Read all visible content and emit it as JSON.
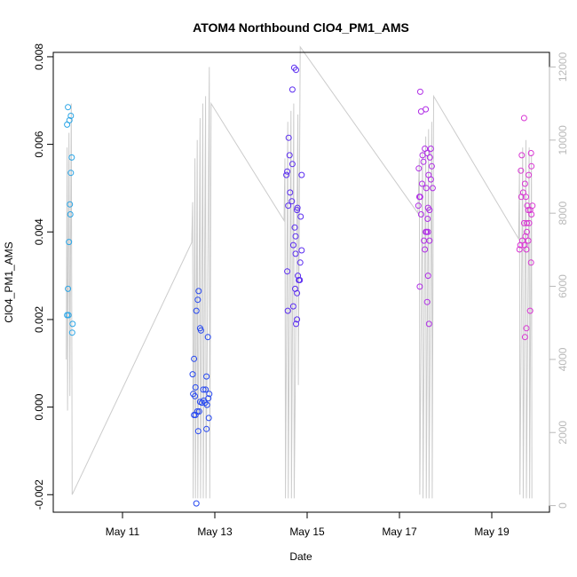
{
  "chart_data": {
    "type": "scatter",
    "title": "ATOM4 Northbound ClO4_PM1_AMS",
    "xlabel": "Date",
    "ylabel": "ClO4_PM1_AMS",
    "x_ticks": [
      {
        "day": 11,
        "label": "May 11"
      },
      {
        "day": 13,
        "label": "May 13"
      },
      {
        "day": 15,
        "label": "May 15"
      },
      {
        "day": 17,
        "label": "May 17"
      },
      {
        "day": 19,
        "label": "May 19"
      }
    ],
    "xlim": [
      "2016-05-09 12:00",
      "2016-05-20 06:00"
    ],
    "ylim": [
      -0.0024,
      0.0081
    ],
    "y_ticks": [
      "-0.002",
      "0.000",
      "0.002",
      "0.004",
      "0.006",
      "0.008"
    ],
    "y2lim": [
      -180,
      12400
    ],
    "y2_ticks": [
      "0",
      "2000",
      "4000",
      "6000",
      "8000",
      "10000",
      "12000"
    ],
    "grid": false,
    "colors": {
      "cluster_day10": "#2aa5e6",
      "cluster_day12": "#2547f0",
      "cluster_day14": "#5b2df0",
      "cluster_day17": "#b02ee6",
      "cluster_day19": "#d936d3",
      "secondary_line": "#cccccc",
      "axis": "#000000",
      "secondary_axis": "#b9b9b9"
    },
    "series": [
      {
        "color_key": "cluster_day10",
        "points": [
          {
            "x": 9.82,
            "y": 0.00685
          },
          {
            "x": 9.8,
            "y": 0.00645
          },
          {
            "x": 9.85,
            "y": 0.00655
          },
          {
            "x": 9.88,
            "y": 0.00665
          },
          {
            "x": 9.9,
            "y": 0.0057
          },
          {
            "x": 9.88,
            "y": 0.00535
          },
          {
            "x": 9.86,
            "y": 0.00463
          },
          {
            "x": 9.87,
            "y": 0.0044
          },
          {
            "x": 9.84,
            "y": 0.00377
          },
          {
            "x": 9.82,
            "y": 0.0027
          },
          {
            "x": 9.8,
            "y": 0.0021
          },
          {
            "x": 9.83,
            "y": 0.0021
          },
          {
            "x": 9.92,
            "y": 0.0019
          },
          {
            "x": 9.91,
            "y": 0.0017
          }
        ]
      },
      {
        "color_key": "cluster_day12",
        "points": [
          {
            "x": 12.65,
            "y": 0.00265
          },
          {
            "x": 12.63,
            "y": 0.00245
          },
          {
            "x": 12.6,
            "y": 0.0022
          },
          {
            "x": 12.68,
            "y": 0.0018
          },
          {
            "x": 12.7,
            "y": 0.00175
          },
          {
            "x": 12.85,
            "y": 0.0016
          },
          {
            "x": 12.55,
            "y": 0.0011
          },
          {
            "x": 12.52,
            "y": 0.00075
          },
          {
            "x": 12.82,
            "y": 0.0007
          },
          {
            "x": 12.58,
            "y": 0.00045
          },
          {
            "x": 12.75,
            "y": 0.0004
          },
          {
            "x": 12.8,
            "y": 0.0004
          },
          {
            "x": 12.53,
            "y": 0.0003
          },
          {
            "x": 12.57,
            "y": 0.00025
          },
          {
            "x": 12.88,
            "y": 0.0003
          },
          {
            "x": 12.86,
            "y": 0.0002
          },
          {
            "x": 12.68,
            "y": 0.00012
          },
          {
            "x": 12.72,
            "y": 0.0001
          },
          {
            "x": 12.76,
            "y": 0.00015
          },
          {
            "x": 12.79,
            "y": 0.0001
          },
          {
            "x": 12.83,
            "y": 5e-05
          },
          {
            "x": 12.62,
            "y": -0.0001
          },
          {
            "x": 12.66,
            "y": -0.0001
          },
          {
            "x": 12.55,
            "y": -0.00018
          },
          {
            "x": 12.58,
            "y": -0.00018
          },
          {
            "x": 12.87,
            "y": -0.00025
          },
          {
            "x": 12.64,
            "y": -0.00055
          },
          {
            "x": 12.82,
            "y": -0.0005
          },
          {
            "x": 12.6,
            "y": -0.0022
          }
        ]
      },
      {
        "color_key": "cluster_day14",
        "points": [
          {
            "x": 14.72,
            "y": 0.00775
          },
          {
            "x": 14.76,
            "y": 0.0077
          },
          {
            "x": 14.68,
            "y": 0.00725
          },
          {
            "x": 14.6,
            "y": 0.00615
          },
          {
            "x": 14.62,
            "y": 0.00575
          },
          {
            "x": 14.68,
            "y": 0.00555
          },
          {
            "x": 14.57,
            "y": 0.00538
          },
          {
            "x": 14.55,
            "y": 0.0053
          },
          {
            "x": 14.88,
            "y": 0.0053
          },
          {
            "x": 14.63,
            "y": 0.0049
          },
          {
            "x": 14.67,
            "y": 0.0047
          },
          {
            "x": 14.59,
            "y": 0.0046
          },
          {
            "x": 14.79,
            "y": 0.00455
          },
          {
            "x": 14.78,
            "y": 0.0045
          },
          {
            "x": 14.86,
            "y": 0.00435
          },
          {
            "x": 14.73,
            "y": 0.0041
          },
          {
            "x": 14.75,
            "y": 0.0039
          },
          {
            "x": 14.7,
            "y": 0.0037
          },
          {
            "x": 14.88,
            "y": 0.00358
          },
          {
            "x": 14.75,
            "y": 0.0035
          },
          {
            "x": 14.85,
            "y": 0.0033
          },
          {
            "x": 14.57,
            "y": 0.0031
          },
          {
            "x": 14.8,
            "y": 0.003
          },
          {
            "x": 14.84,
            "y": 0.0029
          },
          {
            "x": 14.82,
            "y": 0.0029
          },
          {
            "x": 14.74,
            "y": 0.0027
          },
          {
            "x": 14.78,
            "y": 0.0026
          },
          {
            "x": 14.7,
            "y": 0.0023
          },
          {
            "x": 14.58,
            "y": 0.0022
          },
          {
            "x": 14.78,
            "y": 0.002
          },
          {
            "x": 14.76,
            "y": 0.0019
          }
        ]
      },
      {
        "color_key": "cluster_day17",
        "points": [
          {
            "x": 17.45,
            "y": 0.0072
          },
          {
            "x": 17.47,
            "y": 0.00675
          },
          {
            "x": 17.57,
            "y": 0.0068
          },
          {
            "x": 17.68,
            "y": 0.0059
          },
          {
            "x": 17.55,
            "y": 0.0059
          },
          {
            "x": 17.5,
            "y": 0.00575
          },
          {
            "x": 17.6,
            "y": 0.0058
          },
          {
            "x": 17.66,
            "y": 0.0057
          },
          {
            "x": 17.52,
            "y": 0.0056
          },
          {
            "x": 17.7,
            "y": 0.0055
          },
          {
            "x": 17.42,
            "y": 0.00545
          },
          {
            "x": 17.63,
            "y": 0.0053
          },
          {
            "x": 17.68,
            "y": 0.0052
          },
          {
            "x": 17.49,
            "y": 0.0051
          },
          {
            "x": 17.58,
            "y": 0.005
          },
          {
            "x": 17.72,
            "y": 0.005
          },
          {
            "x": 17.45,
            "y": 0.0048
          },
          {
            "x": 17.43,
            "y": 0.0048
          },
          {
            "x": 17.41,
            "y": 0.0046
          },
          {
            "x": 17.62,
            "y": 0.00455
          },
          {
            "x": 17.65,
            "y": 0.0045
          },
          {
            "x": 17.47,
            "y": 0.0044
          },
          {
            "x": 17.61,
            "y": 0.0043
          },
          {
            "x": 17.59,
            "y": 0.004
          },
          {
            "x": 17.57,
            "y": 0.004
          },
          {
            "x": 17.62,
            "y": 0.004
          },
          {
            "x": 17.53,
            "y": 0.0038
          },
          {
            "x": 17.65,
            "y": 0.0038
          },
          {
            "x": 17.55,
            "y": 0.0036
          },
          {
            "x": 17.62,
            "y": 0.003
          },
          {
            "x": 17.44,
            "y": 0.00275
          },
          {
            "x": 17.6,
            "y": 0.0024
          },
          {
            "x": 17.64,
            "y": 0.0019
          }
        ]
      },
      {
        "color_key": "cluster_day19",
        "points": [
          {
            "x": 19.7,
            "y": 0.0066
          },
          {
            "x": 19.85,
            "y": 0.0058
          },
          {
            "x": 19.65,
            "y": 0.00575
          },
          {
            "x": 19.86,
            "y": 0.0055
          },
          {
            "x": 19.63,
            "y": 0.0054
          },
          {
            "x": 19.8,
            "y": 0.0053
          },
          {
            "x": 19.72,
            "y": 0.0051
          },
          {
            "x": 19.68,
            "y": 0.0049
          },
          {
            "x": 19.64,
            "y": 0.0048
          },
          {
            "x": 19.74,
            "y": 0.0048
          },
          {
            "x": 19.77,
            "y": 0.0046
          },
          {
            "x": 19.88,
            "y": 0.0046
          },
          {
            "x": 19.83,
            "y": 0.0045
          },
          {
            "x": 19.79,
            "y": 0.0045
          },
          {
            "x": 19.86,
            "y": 0.0044
          },
          {
            "x": 19.76,
            "y": 0.0042
          },
          {
            "x": 19.81,
            "y": 0.0042
          },
          {
            "x": 19.7,
            "y": 0.0042
          },
          {
            "x": 19.76,
            "y": 0.004
          },
          {
            "x": 19.73,
            "y": 0.0039
          },
          {
            "x": 19.66,
            "y": 0.0038
          },
          {
            "x": 19.62,
            "y": 0.0037
          },
          {
            "x": 19.79,
            "y": 0.0038
          },
          {
            "x": 19.71,
            "y": 0.0037
          },
          {
            "x": 19.75,
            "y": 0.0036
          },
          {
            "x": 19.6,
            "y": 0.0036
          },
          {
            "x": 19.85,
            "y": 0.0033
          },
          {
            "x": 19.83,
            "y": 0.0022
          },
          {
            "x": 19.75,
            "y": 0.0018
          },
          {
            "x": 19.72,
            "y": 0.0016
          }
        ]
      }
    ],
    "secondary_series": {
      "color_key": "secondary_line",
      "points": [
        {
          "x": 9.78,
          "y": 4000
        },
        {
          "x": 9.8,
          "y": 9800
        },
        {
          "x": 9.81,
          "y": 2600
        },
        {
          "x": 9.84,
          "y": 10200
        },
        {
          "x": 9.86,
          "y": 3000
        },
        {
          "x": 9.89,
          "y": 11000
        },
        {
          "x": 9.91,
          "y": 300
        },
        {
          "x": 12.5,
          "y": 7200
        },
        {
          "x": 12.52,
          "y": 8300
        },
        {
          "x": 12.53,
          "y": 200
        },
        {
          "x": 12.57,
          "y": 9500
        },
        {
          "x": 12.58,
          "y": 200
        },
        {
          "x": 12.62,
          "y": 10000
        },
        {
          "x": 12.63,
          "y": 200
        },
        {
          "x": 12.68,
          "y": 10600
        },
        {
          "x": 12.69,
          "y": 200
        },
        {
          "x": 12.74,
          "y": 11000
        },
        {
          "x": 12.75,
          "y": 200
        },
        {
          "x": 12.8,
          "y": 11200
        },
        {
          "x": 12.81,
          "y": 200
        },
        {
          "x": 12.88,
          "y": 12000
        },
        {
          "x": 12.89,
          "y": 200
        },
        {
          "x": 12.92,
          "y": 11000
        },
        {
          "x": 14.5,
          "y": 7800
        },
        {
          "x": 14.52,
          "y": 9500
        },
        {
          "x": 14.53,
          "y": 200
        },
        {
          "x": 14.58,
          "y": 10500
        },
        {
          "x": 14.59,
          "y": 200
        },
        {
          "x": 14.65,
          "y": 10800
        },
        {
          "x": 14.66,
          "y": 200
        },
        {
          "x": 14.71,
          "y": 11000
        },
        {
          "x": 14.72,
          "y": 200
        },
        {
          "x": 14.8,
          "y": 10700
        },
        {
          "x": 14.81,
          "y": 3300
        },
        {
          "x": 14.85,
          "y": 12550
        },
        {
          "x": 17.4,
          "y": 8000
        },
        {
          "x": 17.43,
          "y": 9500
        },
        {
          "x": 17.44,
          "y": 300
        },
        {
          "x": 17.5,
          "y": 9700
        },
        {
          "x": 17.51,
          "y": 200
        },
        {
          "x": 17.57,
          "y": 10100
        },
        {
          "x": 17.58,
          "y": 200
        },
        {
          "x": 17.63,
          "y": 10300
        },
        {
          "x": 17.64,
          "y": 200
        },
        {
          "x": 17.7,
          "y": 10500
        },
        {
          "x": 17.71,
          "y": 200
        },
        {
          "x": 17.74,
          "y": 11200
        },
        {
          "x": 19.58,
          "y": 7300
        },
        {
          "x": 19.6,
          "y": 9200
        },
        {
          "x": 19.61,
          "y": 300
        },
        {
          "x": 19.67,
          "y": 9800
        },
        {
          "x": 19.68,
          "y": 200
        },
        {
          "x": 19.74,
          "y": 10000
        },
        {
          "x": 19.75,
          "y": 200
        },
        {
          "x": 19.81,
          "y": 9800
        },
        {
          "x": 19.82,
          "y": 200
        },
        {
          "x": 19.86,
          "y": 9600
        },
        {
          "x": 19.87,
          "y": 200
        }
      ]
    }
  }
}
